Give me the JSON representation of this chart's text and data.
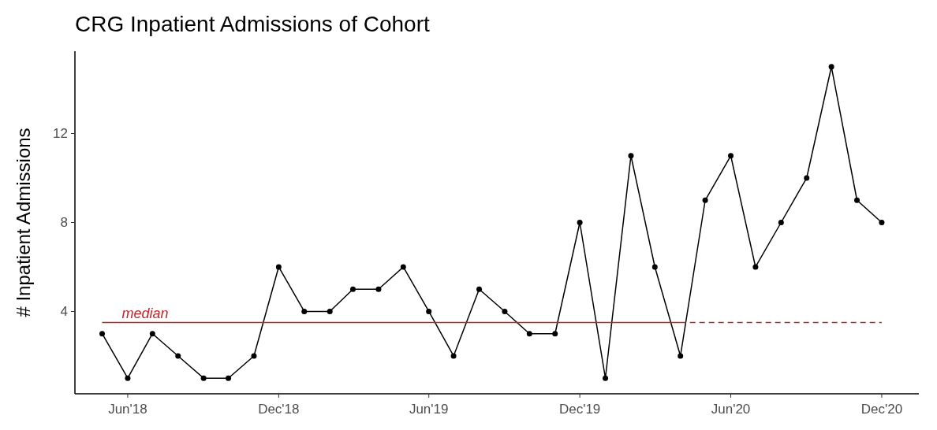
{
  "chart_data": {
    "type": "line",
    "title": "CRG Inpatient Admissions of Cohort",
    "ylabel": "# Inpatient Admissions",
    "x": [
      "2018-05-01",
      "2018-06-01",
      "2018-07-01",
      "2018-08-01",
      "2018-09-01",
      "2018-10-01",
      "2018-11-01",
      "2018-12-01",
      "2019-01-01",
      "2019-02-01",
      "2019-03-01",
      "2019-04-01",
      "2019-05-01",
      "2019-06-01",
      "2019-07-01",
      "2019-08-01",
      "2019-09-01",
      "2019-10-01",
      "2019-11-01",
      "2019-12-01",
      "2020-01-01",
      "2020-02-01",
      "2020-03-01",
      "2020-04-01",
      "2020-05-01",
      "2020-06-01",
      "2020-07-01",
      "2020-08-01",
      "2020-09-01",
      "2020-10-01",
      "2020-11-01",
      "2020-12-01"
    ],
    "series": [
      {
        "color": "#000000",
        "marker": "circle",
        "values": [
          3,
          1,
          3,
          2,
          1,
          1,
          2,
          6,
          4,
          4,
          5,
          5,
          6,
          4,
          2,
          5,
          4,
          3,
          3,
          8,
          1,
          11,
          6,
          2,
          9,
          11,
          6,
          8,
          10,
          15,
          9,
          8
        ]
      },
      {
        "name": "median",
        "color": "#c0262d",
        "marker": "none",
        "line_style": "solid",
        "x": [
          "2018-05-01",
          "2020-04-01"
        ],
        "values": [
          3.5,
          3.5
        ]
      },
      {
        "color": "#c0262d",
        "marker": "none",
        "line_style": "dashed",
        "x": [
          "2020-04-01",
          "2020-12-01"
        ],
        "values": [
          3.5,
          3.5
        ]
      }
    ],
    "xlim": [
      "2018-03-29",
      "2021-01-15"
    ],
    "xticks": [
      {
        "value": "2018-06-01",
        "label": "Jun'18"
      },
      {
        "value": "2018-12-01",
        "label": "Dec'18"
      },
      {
        "value": "2019-06-01",
        "label": "Jun'19"
      },
      {
        "value": "2019-12-01",
        "label": "Dec'19"
      },
      {
        "value": "2020-06-01",
        "label": "Jun'20"
      },
      {
        "value": "2020-12-01",
        "label": "Dec'20"
      }
    ],
    "ylim": [
      0.3,
      15.7
    ],
    "yticks": [
      4,
      8,
      12
    ]
  }
}
